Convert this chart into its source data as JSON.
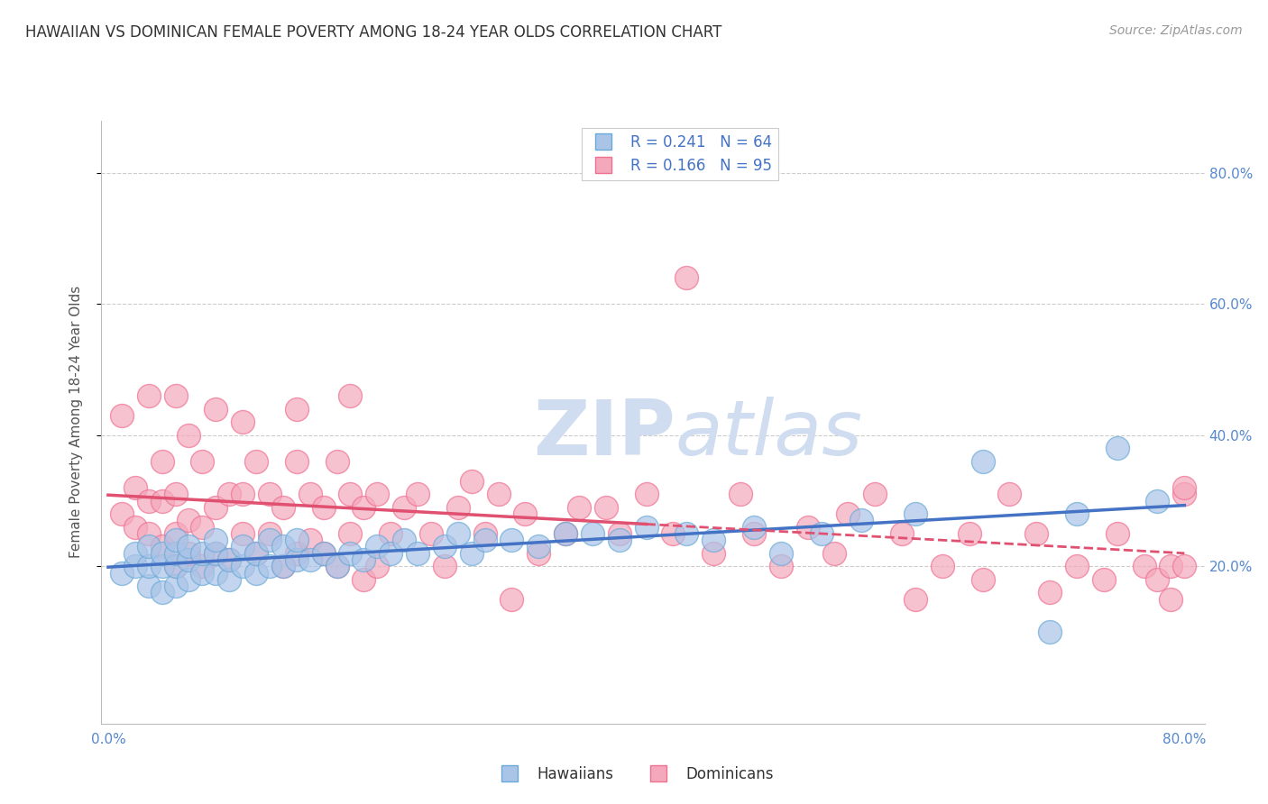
{
  "title": "HAWAIIAN VS DOMINICAN FEMALE POVERTY AMONG 18-24 YEAR OLDS CORRELATION CHART",
  "source": "Source: ZipAtlas.com",
  "ylabel": "Female Poverty Among 18-24 Year Olds",
  "xlim": [
    -0.005,
    0.815
  ],
  "ylim": [
    -0.04,
    0.88
  ],
  "ytick_positions": [
    0.2,
    0.4,
    0.6,
    0.8
  ],
  "ytick_labels": [
    "20.0%",
    "40.0%",
    "60.0%",
    "80.0%"
  ],
  "xtick_positions": [
    0.0,
    0.8
  ],
  "xticklabels": [
    "0.0%",
    "80.0%"
  ],
  "hawaiian_R": 0.241,
  "hawaiian_N": 64,
  "dominican_R": 0.166,
  "dominican_N": 95,
  "hawaiian_color": "#aac4e8",
  "dominican_color": "#f4a8bc",
  "hawaiian_edge_color": "#6aaad8",
  "dominican_edge_color": "#f07090",
  "hawaiian_line_color": "#4472c4",
  "dominican_line_color": "#e05070",
  "watermark_zip": "ZIP",
  "watermark_atlas": "atlas",
  "watermark_color": "#d0ddf0",
  "hawaiian_x": [
    0.01,
    0.02,
    0.02,
    0.03,
    0.03,
    0.03,
    0.04,
    0.04,
    0.04,
    0.05,
    0.05,
    0.05,
    0.05,
    0.06,
    0.06,
    0.06,
    0.07,
    0.07,
    0.08,
    0.08,
    0.08,
    0.09,
    0.09,
    0.1,
    0.1,
    0.11,
    0.11,
    0.12,
    0.12,
    0.13,
    0.13,
    0.14,
    0.14,
    0.15,
    0.16,
    0.17,
    0.18,
    0.19,
    0.2,
    0.21,
    0.22,
    0.23,
    0.25,
    0.26,
    0.27,
    0.28,
    0.3,
    0.32,
    0.34,
    0.36,
    0.38,
    0.4,
    0.43,
    0.45,
    0.48,
    0.5,
    0.53,
    0.56,
    0.6,
    0.65,
    0.7,
    0.72,
    0.75,
    0.78
  ],
  "hawaiian_y": [
    0.19,
    0.2,
    0.22,
    0.17,
    0.2,
    0.23,
    0.16,
    0.2,
    0.22,
    0.17,
    0.2,
    0.22,
    0.24,
    0.18,
    0.21,
    0.23,
    0.19,
    0.22,
    0.19,
    0.22,
    0.24,
    0.18,
    0.21,
    0.2,
    0.23,
    0.19,
    0.22,
    0.2,
    0.24,
    0.2,
    0.23,
    0.21,
    0.24,
    0.21,
    0.22,
    0.2,
    0.22,
    0.21,
    0.23,
    0.22,
    0.24,
    0.22,
    0.23,
    0.25,
    0.22,
    0.24,
    0.24,
    0.23,
    0.25,
    0.25,
    0.24,
    0.26,
    0.25,
    0.24,
    0.26,
    0.22,
    0.25,
    0.27,
    0.28,
    0.36,
    0.1,
    0.28,
    0.38,
    0.3
  ],
  "dominican_x": [
    0.01,
    0.01,
    0.02,
    0.02,
    0.03,
    0.03,
    0.03,
    0.04,
    0.04,
    0.04,
    0.05,
    0.05,
    0.05,
    0.05,
    0.06,
    0.06,
    0.06,
    0.07,
    0.07,
    0.07,
    0.08,
    0.08,
    0.08,
    0.09,
    0.09,
    0.1,
    0.1,
    0.1,
    0.11,
    0.11,
    0.12,
    0.12,
    0.13,
    0.13,
    0.14,
    0.14,
    0.14,
    0.15,
    0.15,
    0.16,
    0.16,
    0.17,
    0.17,
    0.18,
    0.18,
    0.18,
    0.19,
    0.19,
    0.2,
    0.2,
    0.21,
    0.22,
    0.23,
    0.24,
    0.25,
    0.26,
    0.27,
    0.28,
    0.29,
    0.3,
    0.31,
    0.32,
    0.34,
    0.35,
    0.37,
    0.38,
    0.4,
    0.42,
    0.43,
    0.45,
    0.47,
    0.48,
    0.5,
    0.52,
    0.54,
    0.55,
    0.57,
    0.59,
    0.6,
    0.62,
    0.64,
    0.65,
    0.67,
    0.69,
    0.7,
    0.72,
    0.74,
    0.75,
    0.77,
    0.78,
    0.79,
    0.79,
    0.8,
    0.8,
    0.8
  ],
  "dominican_y": [
    0.28,
    0.43,
    0.26,
    0.32,
    0.25,
    0.3,
    0.46,
    0.23,
    0.3,
    0.36,
    0.2,
    0.25,
    0.31,
    0.46,
    0.22,
    0.27,
    0.4,
    0.2,
    0.26,
    0.36,
    0.22,
    0.29,
    0.44,
    0.21,
    0.31,
    0.25,
    0.31,
    0.42,
    0.22,
    0.36,
    0.25,
    0.31,
    0.2,
    0.29,
    0.22,
    0.36,
    0.44,
    0.24,
    0.31,
    0.22,
    0.29,
    0.2,
    0.36,
    0.25,
    0.31,
    0.46,
    0.18,
    0.29,
    0.2,
    0.31,
    0.25,
    0.29,
    0.31,
    0.25,
    0.2,
    0.29,
    0.33,
    0.25,
    0.31,
    0.15,
    0.28,
    0.22,
    0.25,
    0.29,
    0.29,
    0.25,
    0.31,
    0.25,
    0.64,
    0.22,
    0.31,
    0.25,
    0.2,
    0.26,
    0.22,
    0.28,
    0.31,
    0.25,
    0.15,
    0.2,
    0.25,
    0.18,
    0.31,
    0.25,
    0.16,
    0.2,
    0.18,
    0.25,
    0.2,
    0.18,
    0.15,
    0.2,
    0.2,
    0.31,
    0.32
  ]
}
